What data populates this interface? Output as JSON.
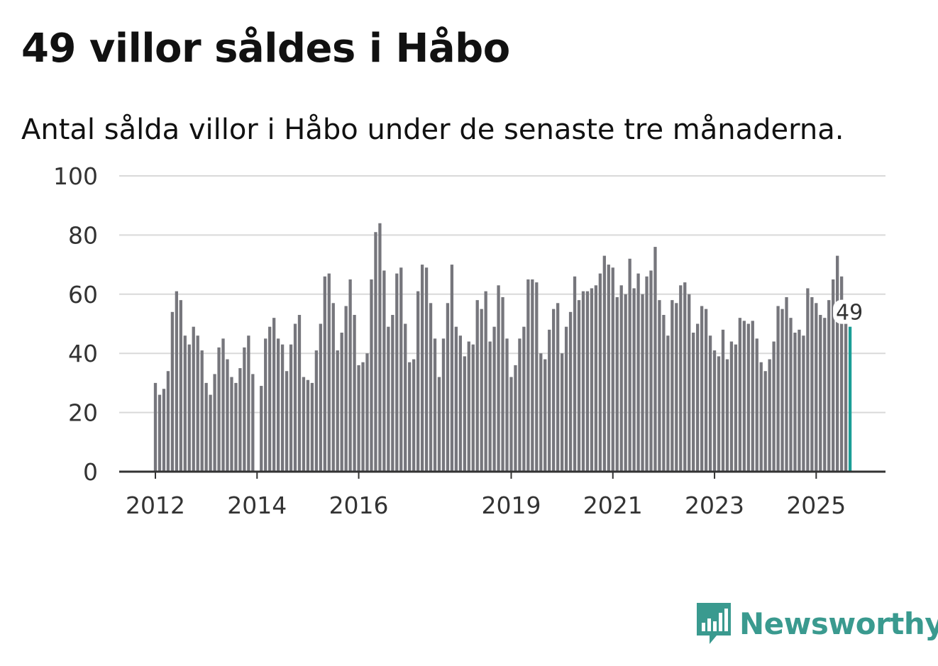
{
  "title": "49 villor såldes i Håbo",
  "subtitle": "Antal sålda villor i Håbo under de senaste tre månaderna.",
  "brand": "Newsworthy",
  "chart_data": {
    "type": "bar",
    "start": "2012-01",
    "frequency": "monthly",
    "ylim": [
      0,
      100
    ],
    "yticks": [
      0,
      20,
      40,
      60,
      80,
      100
    ],
    "xticks": [
      {
        "label": "2012",
        "index": 0
      },
      {
        "label": "2014",
        "index": 24
      },
      {
        "label": "2016",
        "index": 48
      },
      {
        "label": "2019",
        "index": 84
      },
      {
        "label": "2021",
        "index": 108
      },
      {
        "label": "2023",
        "index": 132
      },
      {
        "label": "2025",
        "index": 156
      }
    ],
    "values": [
      30,
      26,
      28,
      34,
      54,
      61,
      58,
      46,
      43,
      49,
      46,
      41,
      30,
      26,
      33,
      42,
      45,
      38,
      32,
      30,
      35,
      42,
      46,
      33,
      0,
      29,
      45,
      49,
      52,
      45,
      43,
      34,
      43,
      50,
      53,
      32,
      31,
      30,
      41,
      50,
      66,
      67,
      57,
      41,
      47,
      56,
      65,
      53,
      36,
      37,
      40,
      65,
      81,
      84,
      68,
      49,
      53,
      67,
      69,
      50,
      37,
      38,
      61,
      70,
      69,
      57,
      45,
      32,
      45,
      57,
      70,
      49,
      46,
      39,
      44,
      43,
      58,
      55,
      61,
      44,
      49,
      63,
      59,
      45,
      32,
      36,
      45,
      49,
      65,
      65,
      64,
      40,
      38,
      48,
      55,
      57,
      40,
      49,
      54,
      66,
      58,
      61,
      61,
      62,
      63,
      67,
      73,
      70,
      69,
      59,
      63,
      60,
      72,
      62,
      67,
      60,
      66,
      68,
      76,
      58,
      53,
      46,
      58,
      57,
      63,
      64,
      60,
      47,
      50,
      56,
      55,
      46,
      41,
      39,
      48,
      38,
      44,
      43,
      52,
      51,
      50,
      51,
      45,
      37,
      34,
      38,
      44,
      56,
      55,
      59,
      52,
      47,
      48,
      46,
      62,
      59,
      57,
      53,
      52,
      58,
      65,
      73,
      66,
      52,
      49
    ],
    "highlight": {
      "label": "49",
      "value": 49
    },
    "colors": {
      "bar": "#76767c",
      "highlight": "#1a9e96",
      "grid": "#d9d9d9",
      "axis": "#333333"
    }
  }
}
